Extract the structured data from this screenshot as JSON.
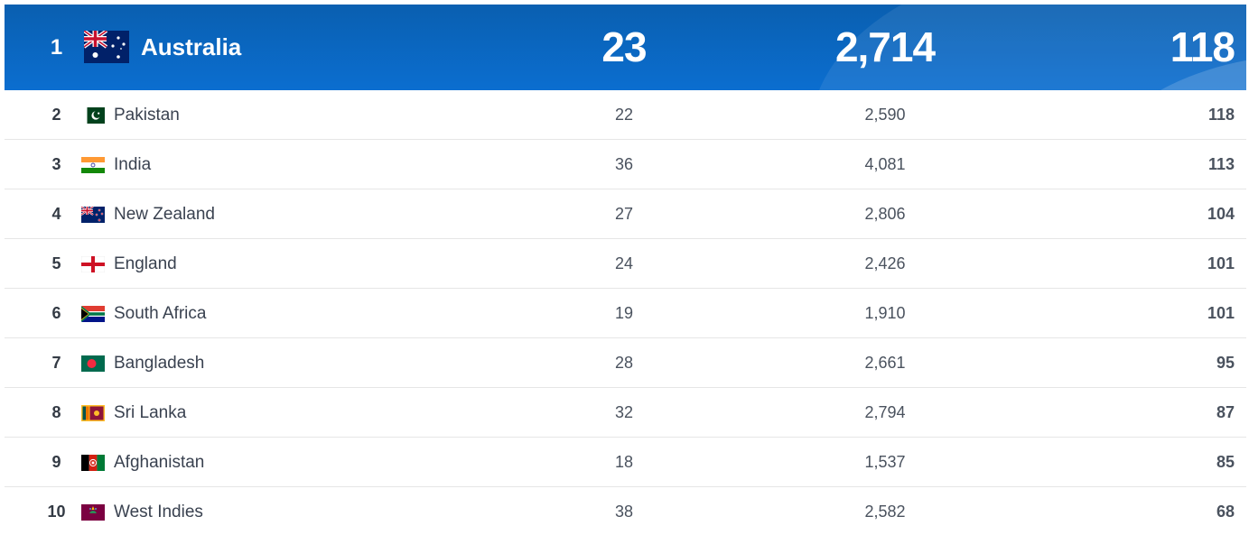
{
  "rankings": {
    "top": {
      "position": "1",
      "team": "Australia",
      "flag_icon": "australia-flag-icon",
      "matches": "23",
      "points": "2,714",
      "rating": "118"
    },
    "rows": [
      {
        "position": "2",
        "team": "Pakistan",
        "flag_icon": "pakistan-flag-icon",
        "matches": "22",
        "points": "2,590",
        "rating": "118"
      },
      {
        "position": "3",
        "team": "India",
        "flag_icon": "india-flag-icon",
        "matches": "36",
        "points": "4,081",
        "rating": "113"
      },
      {
        "position": "4",
        "team": "New Zealand",
        "flag_icon": "new-zealand-flag-icon",
        "matches": "27",
        "points": "2,806",
        "rating": "104"
      },
      {
        "position": "5",
        "team": "England",
        "flag_icon": "england-flag-icon",
        "matches": "24",
        "points": "2,426",
        "rating": "101"
      },
      {
        "position": "6",
        "team": "South Africa",
        "flag_icon": "south-africa-flag-icon",
        "matches": "19",
        "points": "1,910",
        "rating": "101"
      },
      {
        "position": "7",
        "team": "Bangladesh",
        "flag_icon": "bangladesh-flag-icon",
        "matches": "28",
        "points": "2,661",
        "rating": "95"
      },
      {
        "position": "8",
        "team": "Sri Lanka",
        "flag_icon": "sri-lanka-flag-icon",
        "matches": "32",
        "points": "2,794",
        "rating": "87"
      },
      {
        "position": "9",
        "team": "Afghanistan",
        "flag_icon": "afghanistan-flag-icon",
        "matches": "18",
        "points": "1,537",
        "rating": "85"
      },
      {
        "position": "10",
        "team": "West Indies",
        "flag_icon": "west-indies-flag-icon",
        "matches": "38",
        "points": "2,582",
        "rating": "68"
      }
    ]
  },
  "colors": {
    "header_blue": "#0b6ed0",
    "text_dark": "#3a4250",
    "divider": "#e6e6e6"
  }
}
